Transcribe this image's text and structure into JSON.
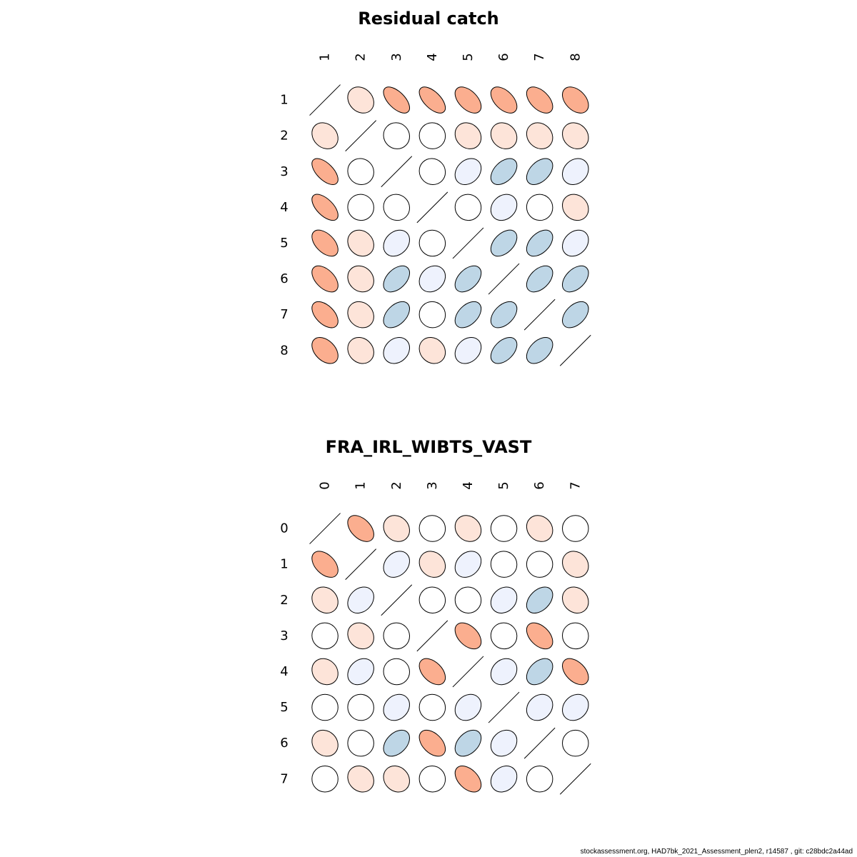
{
  "footer": "stockassessment.org, HAD7bk_2021_Assessment_plen2, r14587 , git: c28bdc2a44ad",
  "palette": {
    "strong_pos": "#fbae8f",
    "weak_pos": "#fde4d9",
    "neutral": "#ffffff",
    "weak_neg": "#eef2fd",
    "mid_neg": "#bed6e6"
  },
  "chart_data": [
    {
      "type": "heatmap",
      "title": "Residual catch",
      "labels": [
        "1",
        "2",
        "3",
        "4",
        "5",
        "6",
        "7",
        "8"
      ],
      "matrix": [
        [
          1.0,
          0.2,
          0.6,
          0.6,
          0.5,
          0.5,
          0.5,
          0.4
        ],
        [
          0.2,
          1.0,
          0.05,
          0.02,
          0.15,
          0.15,
          0.15,
          0.15
        ],
        [
          0.6,
          0.05,
          1.0,
          0.05,
          -0.25,
          -0.45,
          -0.45,
          -0.2
        ],
        [
          0.6,
          0.02,
          0.05,
          1.0,
          0.02,
          -0.2,
          0.02,
          0.15
        ],
        [
          0.5,
          0.15,
          -0.25,
          0.02,
          1.0,
          -0.45,
          -0.45,
          -0.25
        ],
        [
          0.5,
          0.15,
          -0.45,
          -0.2,
          -0.45,
          1.0,
          -0.45,
          -0.45
        ],
        [
          0.5,
          0.15,
          -0.45,
          0.02,
          -0.45,
          -0.45,
          1.0,
          -0.45
        ],
        [
          0.4,
          0.15,
          -0.2,
          0.15,
          -0.25,
          -0.45,
          -0.45,
          1.0
        ]
      ]
    },
    {
      "type": "heatmap",
      "title": "FRA_IRL_WIBTS_VAST",
      "labels": [
        "0",
        "1",
        "2",
        "3",
        "4",
        "5",
        "6",
        "7"
      ],
      "matrix": [
        [
          1.0,
          0.45,
          0.15,
          0.02,
          0.15,
          0.0,
          0.15,
          0.0
        ],
        [
          0.45,
          1.0,
          -0.25,
          0.15,
          -0.25,
          0.02,
          0.0,
          0.15
        ],
        [
          0.15,
          -0.25,
          1.0,
          0.02,
          0.02,
          -0.2,
          -0.4,
          0.15
        ],
        [
          0.02,
          0.15,
          0.02,
          1.0,
          0.45,
          0.02,
          0.45,
          0.02
        ],
        [
          0.15,
          -0.25,
          0.02,
          0.45,
          1.0,
          -0.2,
          -0.4,
          0.45
        ],
        [
          0.0,
          0.02,
          -0.2,
          0.02,
          -0.2,
          1.0,
          -0.2,
          -0.2
        ],
        [
          0.15,
          0.0,
          -0.4,
          0.45,
          -0.4,
          -0.2,
          1.0,
          0.0
        ],
        [
          0.0,
          0.15,
          0.15,
          0.02,
          0.45,
          -0.2,
          0.0,
          1.0
        ]
      ]
    }
  ]
}
